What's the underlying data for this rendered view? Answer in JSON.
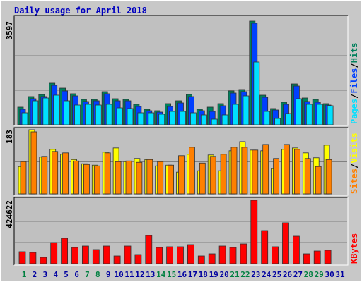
{
  "chart_data": [
    {
      "type": "bar",
      "title": "Daily usage for April 2018",
      "ylim": [
        0,
        3597
      ],
      "yticks": [
        {
          "value": 1199,
          "label": null
        },
        {
          "value": 2398,
          "label": null
        },
        3597
      ],
      "legend_separator": "/",
      "series": [
        {
          "name": "Hits",
          "color": "#00805c",
          "values": [
            612,
            979,
            1052,
            1444,
            1272,
            1077,
            881,
            881,
            1150,
            905,
            881,
            710,
            538,
            489,
            734,
            832,
            1052,
            538,
            612,
            734,
            1175,
            1224,
            3597,
            1028,
            563,
            783,
            1419,
            930,
            881,
            734,
            null
          ]
        },
        {
          "name": "Files",
          "color": "#0040ff",
          "values": [
            538,
            905,
            979,
            1370,
            1175,
            1003,
            808,
            832,
            1077,
            832,
            832,
            636,
            489,
            440,
            636,
            759,
            979,
            489,
            465,
            661,
            1101,
            1150,
            3524,
            954,
            514,
            710,
            1346,
            808,
            783,
            685,
            null
          ]
        },
        {
          "name": "Pages",
          "color": "#00e0ff",
          "values": [
            416,
            832,
            930,
            1028,
            832,
            685,
            710,
            685,
            710,
            587,
            563,
            416,
            416,
            367,
            465,
            465,
            416,
            343,
            196,
            343,
            710,
            1003,
            2178,
            465,
            220,
            392,
            905,
            710,
            710,
            661,
            null
          ]
        }
      ]
    },
    {
      "type": "bar",
      "ylim": [
        0,
        183
      ],
      "yticks": [
        {
          "value": 91.5,
          "label": null
        },
        183
      ],
      "legend_separator": "/",
      "series": [
        {
          "name": "Visits",
          "color": "#ffff00",
          "values": [
            78,
            183,
            105,
            127,
            113,
            98,
            86,
            82,
            119,
            131,
            92,
            101,
            98,
            80,
            82,
            62,
            113,
            66,
            111,
            66,
            123,
            149,
            125,
            123,
            72,
            127,
            131,
            117,
            103,
            139,
            null
          ]
        },
        {
          "name": "Sites",
          "color": "#ff8000",
          "values": [
            92,
            177,
            107,
            121,
            117,
            94,
            84,
            80,
            117,
            92,
            94,
            90,
            98,
            92,
            82,
            109,
            133,
            88,
            107,
            113,
            133,
            133,
            125,
            141,
            101,
            141,
            127,
            101,
            78,
            98,
            null
          ]
        }
      ]
    },
    {
      "type": "bar",
      "ylim": [
        0,
        424622
      ],
      "yticks": [
        {
          "value": 141541,
          "label": null
        },
        {
          "value": 283081,
          "label": null
        },
        424622
      ],
      "categories": [
        "1",
        "2",
        "3",
        "4",
        "5",
        "6",
        "7",
        "8",
        "9",
        "10",
        "11",
        "12",
        "13",
        "14",
        "15",
        "16",
        "17",
        "18",
        "19",
        "20",
        "21",
        "22",
        "23",
        "24",
        "25",
        "26",
        "27",
        "28",
        "29",
        "30",
        "31"
      ],
      "x_label_colors": [
        "#008040",
        "#0000a0",
        "#0000a0",
        "#0000a0",
        "#0000a0",
        "#0000a0",
        "#008040",
        "#008040",
        "#0000a0",
        "#0000a0",
        "#0000a0",
        "#0000a0",
        "#0000a0",
        "#008040",
        "#008040",
        "#0000a0",
        "#0000a0",
        "#0000a0",
        "#0000a0",
        "#0000a0",
        "#008040",
        "#008040",
        "#0000a0",
        "#0000a0",
        "#0000a0",
        "#0000a0",
        "#0000a0",
        "#008040",
        "#008040",
        "#0000a0",
        "#0000a0"
      ],
      "series": [
        {
          "name": "KBytes",
          "color": "#ff0000",
          "values": [
            80206,
            75488,
            42462,
            141540,
            169848,
            108514,
            117950,
            94360,
            117950,
            51898,
            117950,
            61334,
            188720,
            108514,
            113232,
            113232,
            127386,
            51898,
            66052,
            117950,
            108514,
            132104,
            424622,
            221746,
            113232,
            273644,
            184002,
            66052,
            84924,
            89642,
            null
          ]
        }
      ]
    }
  ]
}
